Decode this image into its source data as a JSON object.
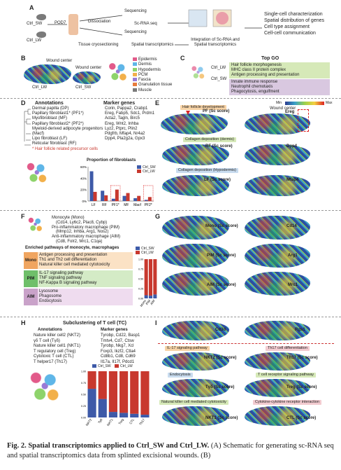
{
  "panel_letters": [
    "A",
    "B",
    "C",
    "D",
    "E",
    "F",
    "G",
    "H",
    "I"
  ],
  "panelA": {
    "groups": [
      "Ctrl_SW",
      "Ctrl_LW"
    ],
    "timepoint": "POD7",
    "steps": [
      "Dissociation",
      "Sequencing",
      "Sc-RNA seq",
      "Sequencing",
      "Tissue cryosectioning",
      "Spatial transcriptomics",
      "Integration of Sc-RNA and Spatial transcriptomics"
    ],
    "outputs": [
      "Single-cell characterization",
      "Spatial distribution of genes",
      "Cell type assignment",
      "Cell-cell communication"
    ]
  },
  "panelB": {
    "labels": [
      "Wound center",
      "Wound center",
      "Ctrl_LW",
      "Ctrl_SW"
    ],
    "legend": [
      "Epidermis",
      "Dermis",
      "Hypodermis",
      "PCM",
      "Fascia",
      "Granulation tissue",
      "Muscle"
    ],
    "legend_colors": [
      "#e25a8a",
      "#5fb6e8",
      "#8ed36b",
      "#f2b04a",
      "#9a7ad6",
      "#e77b3c",
      "#7a7a7a"
    ]
  },
  "panelC": {
    "title": "Top GO",
    "labels": [
      "Ctrl_LW",
      "Ctrl_SW"
    ],
    "lw_terms": [
      "Hair follicle morphogenesis",
      "MHC class II protein complex",
      "Antigen processing and presentation"
    ],
    "sw_terms": [
      "Innate immune response",
      "Neutrophil chemotaxis",
      "Phagocytosis, engulfment"
    ]
  },
  "panelD": {
    "col_annotations": "Annotations",
    "col_markers": "Marker genes",
    "rows": [
      {
        "name": "Dermal papilla (DP)",
        "markers": "Corin, Pappa2, Crabp1"
      },
      {
        "name": "Papillary fibroblast1* (PF1*)",
        "markers": "Ereg, Fabp5, Sdc1, Prdm1"
      },
      {
        "name": "Myofibroblast (MF)",
        "markers": "Acta2, Tagln, Birc5"
      },
      {
        "name": "Papillary fibroblast2* (PF2*)",
        "markers": "Ereg, Wnt2, Inhba"
      },
      {
        "name": "Myeloid-derived adipocyte progenitors (Macf)",
        "markers": "Lyz2, Ptprc, Plin2"
      },
      {
        "name": "Lipo fibroblast (LF)",
        "markers": "Pdgfrb, Mfap4, Nr4a2"
      },
      {
        "name": "Reticular fibroblast (RF)",
        "markers": "Dpp4, Pla2g2a, Gpx3"
      }
    ],
    "footnote": "* Hair follicle related precursor cells"
  },
  "chart_data": [
    {
      "type": "bar",
      "title": "Proportion of fibroblasts",
      "categories": [
        "LF",
        "RF",
        "PF1*",
        "MF",
        "Macf",
        "PF2*"
      ],
      "series": [
        {
          "name": "Ctrl_SW",
          "values": [
            0.52,
            0.18,
            0.04,
            0.09,
            0.05,
            0.02
          ]
        },
        {
          "name": "Ctrl_LW",
          "values": [
            0.16,
            0.1,
            0.2,
            0.14,
            0.09,
            0.07
          ]
        }
      ],
      "ylabel": "",
      "yticks": [
        "0%",
        "20%",
        "40%",
        "60%"
      ],
      "ylim": [
        0,
        0.6
      ],
      "colors": [
        "#3e5aa8",
        "#c8382e"
      ]
    },
    {
      "type": "bar",
      "title": "",
      "categories": [
        "Mono",
        "PIM",
        "AIM"
      ],
      "series": [
        {
          "name": "Ctrl_SW",
          "values": [
            0.08,
            0.07,
            0.1
          ]
        },
        {
          "name": "Ctrl_LW",
          "values": [
            0.92,
            0.93,
            0.9
          ]
        }
      ],
      "stacked": true,
      "yticks": [
        "0.00",
        "0.25",
        "0.50",
        "0.75",
        "1.00"
      ],
      "ylim": [
        0,
        1
      ],
      "colors": [
        "#3e5aa8",
        "#c8382e"
      ]
    },
    {
      "type": "bar",
      "title": "",
      "categories": [
        "NKT2",
        "Ty6",
        "NKT1",
        "Treg",
        "CTL",
        "Th17"
      ],
      "series": [
        {
          "name": "Ctrl_SW",
          "values": [
            0.62,
            0.4,
            0.12,
            0.1,
            0.08,
            0.06
          ]
        },
        {
          "name": "Ctrl_LW",
          "values": [
            0.38,
            0.6,
            0.88,
            0.9,
            0.92,
            0.94
          ]
        }
      ],
      "stacked": true,
      "yticks": [
        "0.00",
        "0.25",
        "0.50",
        "0.75",
        "1.00"
      ],
      "ylim": [
        0,
        1
      ],
      "colors": [
        "#3e5aa8",
        "#c8382e"
      ]
    }
  ],
  "panelE": {
    "colorbar": {
      "min": "Min",
      "max": "Max"
    },
    "wound_label": "Wound center",
    "tags": [
      "Hair follicle development",
      "Collagen deposition (dermis)",
      "Collagen deposition (Hypodermis)"
    ],
    "scores": [
      "PF (Sc score)",
      "RF (Sc score)",
      "LF (Sc score)"
    ],
    "genes": [
      "Ereg",
      "Dpp4",
      "Mfap4"
    ]
  },
  "panelF": {
    "rows": [
      {
        "name": "Monocyte (Mono)",
        "markers": "(Cd14, Ly6c2, Plac8, Cybp)"
      },
      {
        "name": "Pro-inflammatory macrophage (PIM)",
        "markers": "(Mmp12, Inhba, Arg1, Nos2)"
      },
      {
        "name": "Anti-inflammatory macrophage (AIM)",
        "markers": "(Cd8, Folr2, Mrc1, C1qa)"
      }
    ],
    "enriched_title": "Enriched pathways of monocyte, macrophages",
    "groups": [
      {
        "label": "Mono",
        "terms": [
          "Antigen processing and presentation",
          "Th1 and Th2 cell differentiation",
          "Natural killer cell mediated cytotoxicity"
        ]
      },
      {
        "label": "PIM",
        "terms": [
          "IL-17 signaling pathway",
          "TNF signaling pathway",
          "NF-Kappa B signaling pathway"
        ]
      },
      {
        "label": "AIM",
        "terms": [
          "Lysosome",
          "Phagosome",
          "Endocytosis"
        ]
      }
    ]
  },
  "panelG": {
    "scores": [
      "Mono (Sc score)",
      "PIM (Sc score)",
      "AIM (Sc score)"
    ],
    "genes": [
      "Cd14",
      "Arg1",
      "Mrc1"
    ]
  },
  "panelH": {
    "title": "Subclustering of T cell (TC)",
    "col_annotations": "Annotations",
    "col_markers": "Marker genes",
    "rows": [
      {
        "name": "Nature killer cell2 (NKT2)",
        "markers": "Tyrobp, Cd22, Basp1"
      },
      {
        "name": "γδ T cell (Tγδ)",
        "markers": "Tmtv4, Cd7, Ctsw"
      },
      {
        "name": "Nature killer cell1 (NKT1)",
        "markers": "Tyrobp, Nkg7, Xcl"
      },
      {
        "name": "T regulatory cell (Treg)",
        "markers": "Foxp3, Ikzf2, Ctla4"
      },
      {
        "name": "Cytotoxic T cell (CTL)",
        "markers": "Cd8b1, Cd8, Cd69"
      },
      {
        "name": "T helper17 (Th17)",
        "markers": "Il17a, Il17f, Pdcd1"
      }
    ]
  },
  "panelI": {
    "genes_top": [
      "Cd3d",
      "Rgs1"
    ],
    "tags": [
      "IL-17 signaling pathway",
      "Th17 cell differentiation",
      "Endocytosis",
      "T cell receptor signaling pathway",
      "Natural killer cell mediated cytotoxicity",
      "Cytokine-cytokine receptor interaction"
    ],
    "scores": [
      "NKT2 (Sc score)",
      "Th17 (Sc score)",
      "Tγδ (Sc score)",
      "Treg (Sc score)",
      "NKT1 (Sc score)",
      "CTL (Sc score)"
    ]
  },
  "legend_names": [
    "Ctrl_SW",
    "Ctrl_LW"
  ],
  "caption": {
    "head": "Fig. 2. Spatial transcriptomics applied to Ctrl_SW and Ctrl_LW.",
    "body": " (A) Schematic for generating sc-RNA seq and spatial transcriptomics data from splinted excisional wounds. (B)"
  }
}
